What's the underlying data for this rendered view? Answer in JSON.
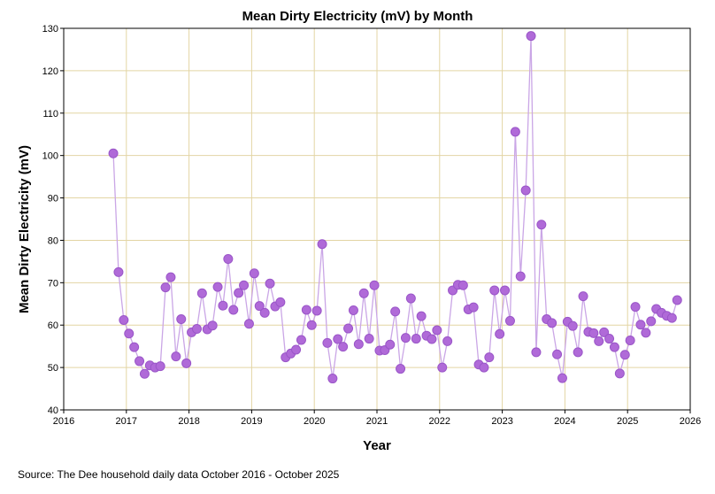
{
  "chart_data": {
    "type": "line",
    "title": "Mean Dirty Electricity (mV) by Month",
    "xlabel": "Year",
    "ylabel": "Mean Dirty Electricity (mV)",
    "source": "Source: The Dee household daily data October 2016 - October 2025",
    "xlim": [
      2016,
      2026
    ],
    "ylim": [
      40,
      130
    ],
    "x_ticks": [
      2016,
      2017,
      2018,
      2019,
      2020,
      2021,
      2022,
      2023,
      2024,
      2025,
      2026
    ],
    "y_ticks": [
      40,
      50,
      60,
      70,
      80,
      90,
      100,
      110,
      120,
      130
    ],
    "grid": true,
    "colors": {
      "marker_fill": "#b06ad8",
      "marker_edge": "#9a56c8",
      "line": "#caa6e6",
      "grid": "#e3d5a4",
      "frame": "#000000"
    },
    "series": [
      {
        "name": "Mean Dirty Electricity (mV)",
        "start": "2016-10",
        "values": [
          100.5,
          72.5,
          61.2,
          58.0,
          54.8,
          51.5,
          48.5,
          50.5,
          50.0,
          50.3,
          68.9,
          71.3,
          52.6,
          61.4,
          51.0,
          58.3,
          59.1,
          67.5,
          59.0,
          59.9,
          69.0,
          64.6,
          75.6,
          63.6,
          67.6,
          69.4,
          60.3,
          72.2,
          64.5,
          62.9,
          69.8,
          64.4,
          65.4,
          52.4,
          53.3,
          54.2,
          56.5,
          63.6,
          60.0,
          63.4,
          79.1,
          55.8,
          47.4,
          56.7,
          54.9,
          59.2,
          63.5,
          55.5,
          67.5,
          56.8,
          69.4,
          54.0,
          54.1,
          55.4,
          63.2,
          49.7,
          57.0,
          66.3,
          56.8,
          62.1,
          57.5,
          56.7,
          58.8,
          50.0,
          56.2,
          68.2,
          69.5,
          69.4,
          63.7,
          64.2,
          50.7,
          50.0,
          52.4,
          68.2,
          57.9,
          68.2,
          61.0,
          105.6,
          71.5,
          91.8,
          128.2,
          53.6,
          83.7,
          61.4,
          60.5,
          53.1,
          47.5,
          60.8,
          59.8,
          53.6,
          66.8,
          58.4,
          58.1,
          56.2,
          58.3,
          56.8,
          54.8,
          48.6,
          53.0,
          56.4,
          64.3,
          60.1,
          58.2,
          60.9,
          63.8,
          62.9,
          62.2,
          61.7,
          65.9
        ]
      }
    ]
  }
}
